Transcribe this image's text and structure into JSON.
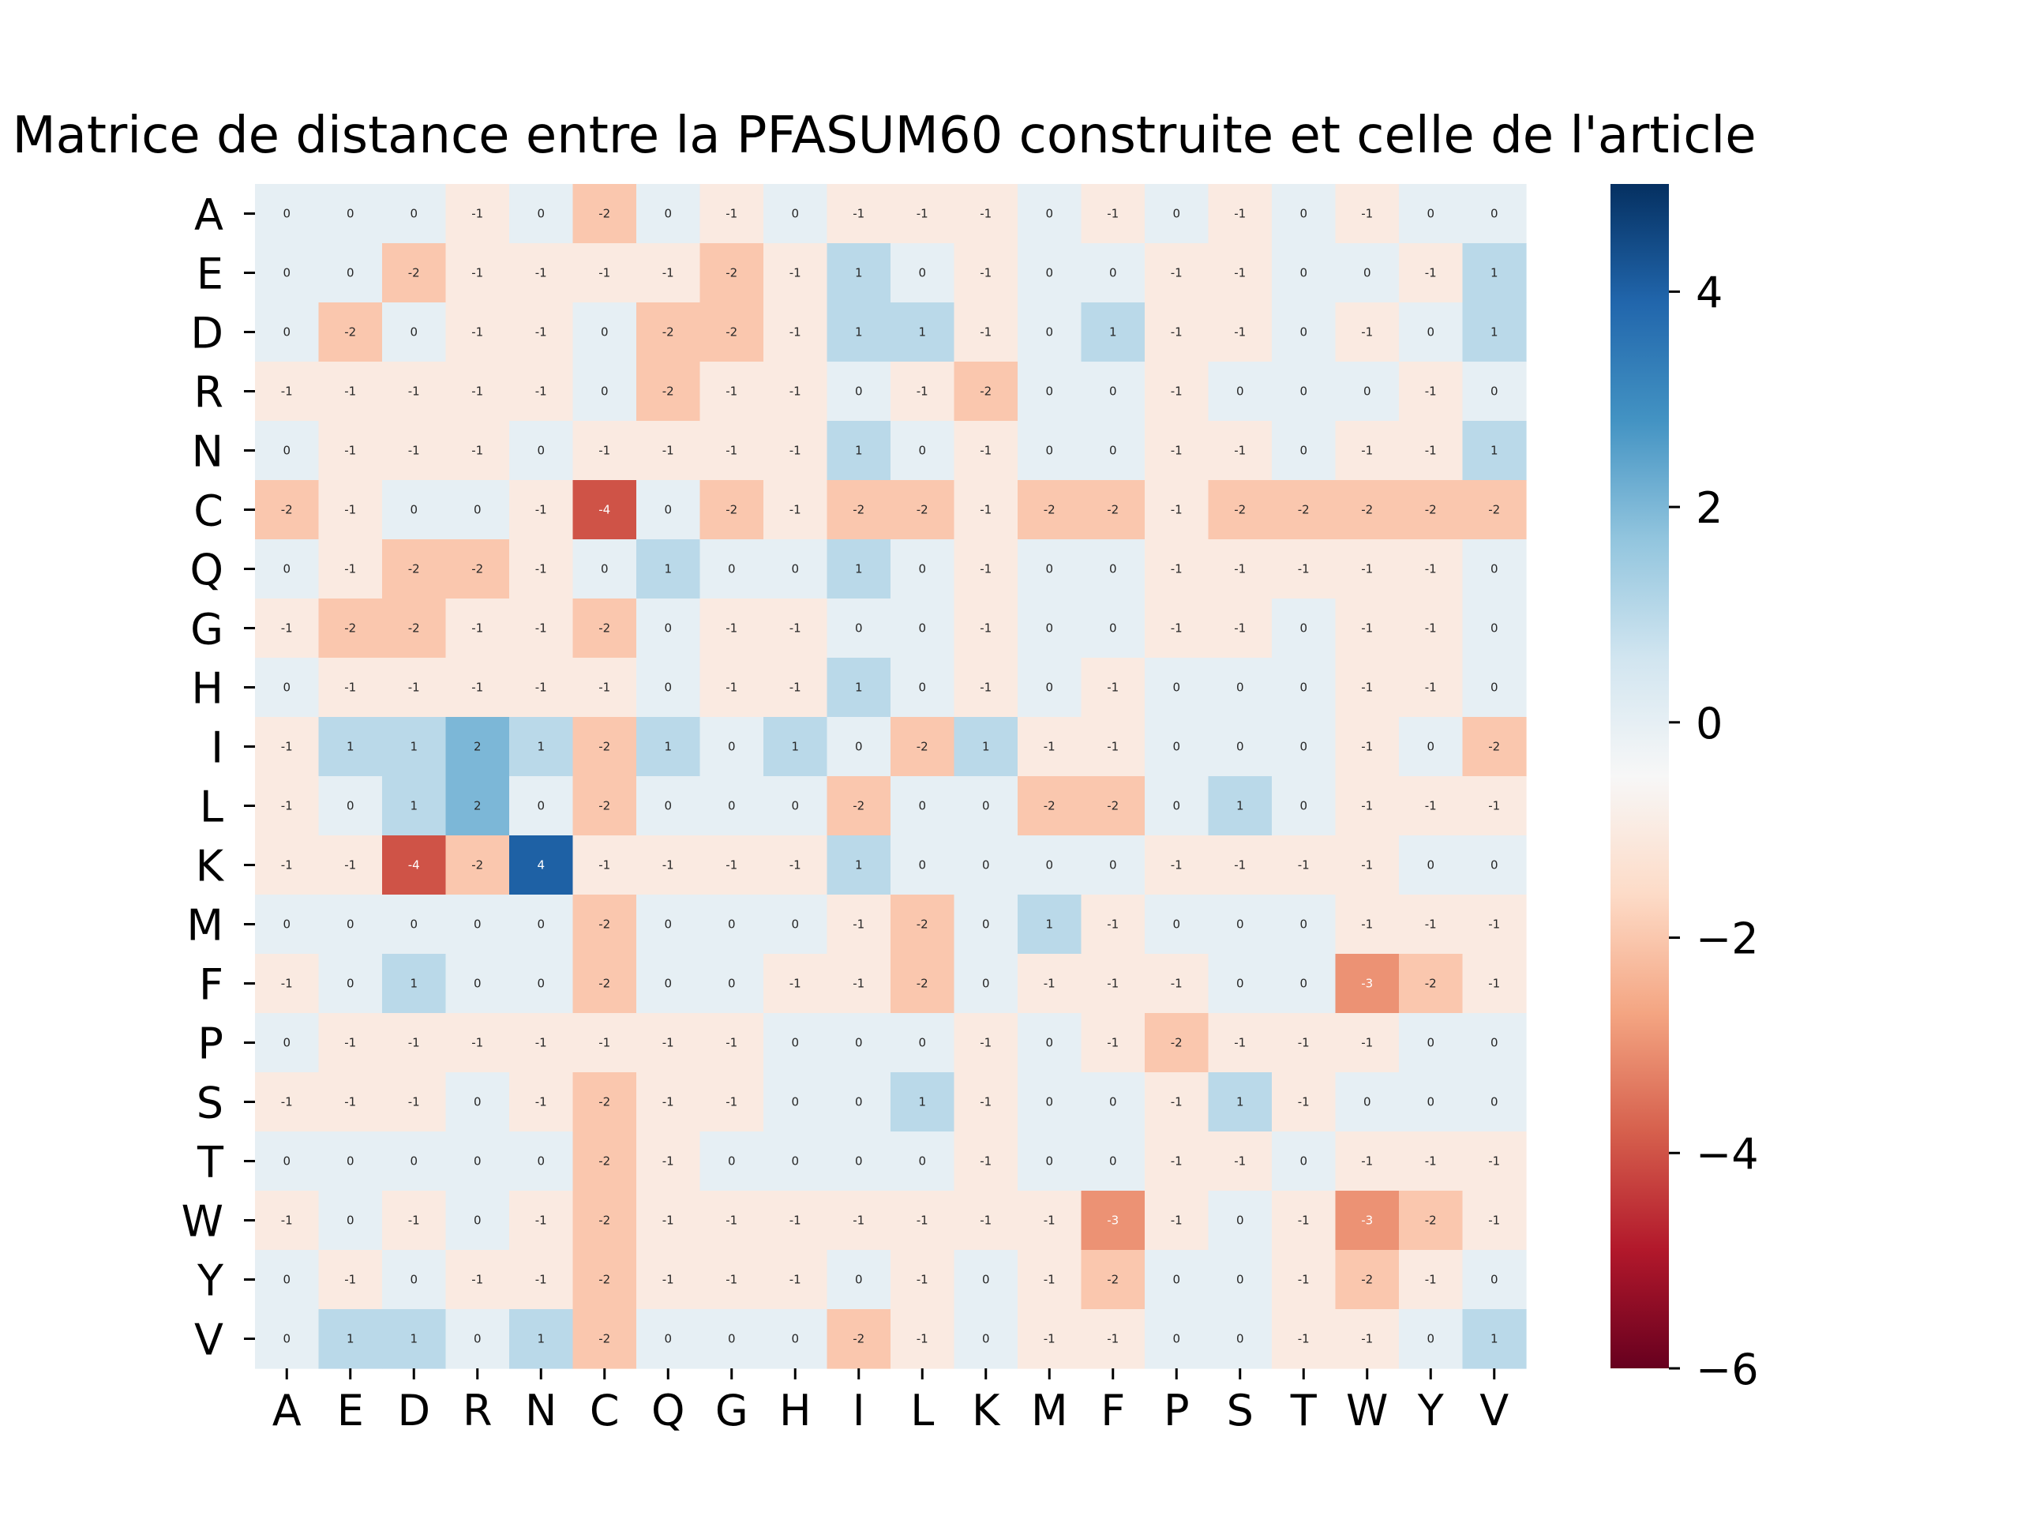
{
  "chart_data": {
    "type": "heatmap",
    "title": "Matrice de distance entre la PFASUM60 construite et celle de l'article",
    "xlabel": "",
    "ylabel": "",
    "x_labels": [
      "A",
      "E",
      "D",
      "R",
      "N",
      "C",
      "Q",
      "G",
      "H",
      "I",
      "L",
      "K",
      "M",
      "F",
      "P",
      "S",
      "T",
      "W",
      "Y",
      "V"
    ],
    "y_labels": [
      "A",
      "E",
      "D",
      "R",
      "N",
      "C",
      "Q",
      "G",
      "H",
      "I",
      "L",
      "K",
      "M",
      "F",
      "P",
      "S",
      "T",
      "W",
      "Y",
      "V"
    ],
    "values": [
      [
        0,
        0,
        0,
        -1,
        0,
        -2,
        0,
        -1,
        0,
        -1,
        -1,
        -1,
        0,
        -1,
        0,
        -1,
        0,
        -1,
        0,
        0
      ],
      [
        0,
        0,
        -2,
        -1,
        -1,
        -1,
        -1,
        -2,
        -1,
        1,
        0,
        -1,
        0,
        0,
        -1,
        -1,
        0,
        0,
        -1,
        1
      ],
      [
        0,
        -2,
        0,
        -1,
        -1,
        0,
        -2,
        -2,
        -1,
        1,
        1,
        -1,
        0,
        1,
        -1,
        -1,
        0,
        -1,
        0,
        1
      ],
      [
        -1,
        -1,
        -1,
        -1,
        -1,
        0,
        -2,
        -1,
        -1,
        0,
        -1,
        -2,
        0,
        0,
        -1,
        0,
        0,
        0,
        -1,
        0
      ],
      [
        0,
        -1,
        -1,
        -1,
        0,
        -1,
        -1,
        -1,
        -1,
        1,
        0,
        -1,
        0,
        0,
        -1,
        -1,
        0,
        -1,
        -1,
        1
      ],
      [
        -2,
        -1,
        0,
        0,
        -1,
        -4,
        0,
        -2,
        -1,
        -2,
        -2,
        -1,
        -2,
        -2,
        -1,
        -2,
        -2,
        -2,
        -2,
        -2
      ],
      [
        0,
        -1,
        -2,
        -2,
        -1,
        0,
        1,
        0,
        0,
        1,
        0,
        -1,
        0,
        0,
        -1,
        -1,
        -1,
        -1,
        -1,
        0
      ],
      [
        -1,
        -2,
        -2,
        -1,
        -1,
        -2,
        0,
        -1,
        -1,
        0,
        0,
        -1,
        0,
        0,
        -1,
        -1,
        0,
        -1,
        -1,
        0
      ],
      [
        0,
        -1,
        -1,
        -1,
        -1,
        -1,
        0,
        -1,
        -1,
        1,
        0,
        -1,
        0,
        -1,
        0,
        0,
        0,
        -1,
        -1,
        0
      ],
      [
        -1,
        1,
        1,
        2,
        1,
        -2,
        1,
        0,
        1,
        0,
        -2,
        1,
        -1,
        -1,
        0,
        0,
        0,
        -1,
        0,
        -2
      ],
      [
        -1,
        0,
        1,
        2,
        0,
        -2,
        0,
        0,
        0,
        -2,
        0,
        0,
        -2,
        -2,
        0,
        1,
        0,
        -1,
        -1,
        -1
      ],
      [
        -1,
        -1,
        -4,
        -2,
        4,
        -1,
        -1,
        -1,
        -1,
        1,
        0,
        0,
        0,
        0,
        -1,
        -1,
        -1,
        -1,
        0,
        0
      ],
      [
        0,
        0,
        0,
        0,
        0,
        -2,
        0,
        0,
        0,
        -1,
        -2,
        0,
        1,
        -1,
        0,
        0,
        0,
        -1,
        -1,
        -1
      ],
      [
        -1,
        0,
        1,
        0,
        0,
        -2,
        0,
        0,
        -1,
        -1,
        -2,
        0,
        -1,
        -1,
        -1,
        0,
        0,
        -3,
        -2,
        -1
      ],
      [
        0,
        -1,
        -1,
        -1,
        -1,
        -1,
        -1,
        -1,
        0,
        0,
        0,
        -1,
        0,
        -1,
        -2,
        -1,
        -1,
        -1,
        0,
        0
      ],
      [
        -1,
        -1,
        -1,
        0,
        -1,
        -2,
        -1,
        -1,
        0,
        0,
        1,
        -1,
        0,
        0,
        -1,
        1,
        -1,
        0,
        0,
        0
      ],
      [
        0,
        0,
        0,
        0,
        0,
        -2,
        -1,
        0,
        0,
        0,
        0,
        -1,
        0,
        0,
        -1,
        -1,
        0,
        -1,
        -1,
        -1
      ],
      [
        -1,
        0,
        -1,
        0,
        -1,
        -2,
        -1,
        -1,
        -1,
        -1,
        -1,
        -1,
        -1,
        -3,
        -1,
        0,
        -1,
        -3,
        -2,
        -1
      ],
      [
        0,
        -1,
        0,
        -1,
        -1,
        -2,
        -1,
        -1,
        -1,
        0,
        -1,
        0,
        -1,
        -2,
        0,
        0,
        -1,
        -2,
        -1,
        0
      ],
      [
        0,
        1,
        1,
        0,
        1,
        -2,
        0,
        0,
        0,
        -2,
        -1,
        0,
        -1,
        -1,
        0,
        0,
        -1,
        -1,
        0,
        1
      ]
    ],
    "colorbar": {
      "colormap": "RdBu",
      "vmin": -6,
      "vmax": 5,
      "ticks": [
        -6,
        -4,
        -2,
        0,
        2,
        4
      ],
      "tick_labels": [
        "−6",
        "−4",
        "−2",
        "0",
        "2",
        "4"
      ]
    },
    "annotated": true,
    "grid": false,
    "legend": "colorbar-right"
  }
}
